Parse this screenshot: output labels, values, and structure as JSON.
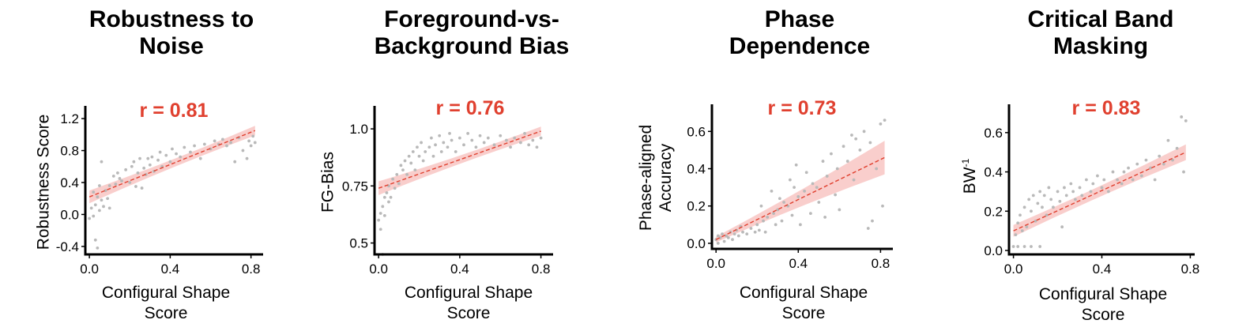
{
  "chart_data": [
    {
      "type": "scatter",
      "title": "Robustness to Noise",
      "title_lines": [
        "Robustness to",
        "Noise"
      ],
      "r_label": "r = 0.81",
      "xlabel_lines": [
        "Configural Shape",
        "Score"
      ],
      "ylabel": "Robustness Score",
      "xlim": [
        -0.02,
        0.86
      ],
      "ylim": [
        -0.5,
        1.3
      ],
      "xticks": [
        0.0,
        0.4,
        0.8
      ],
      "xtick_labels": [
        "0.0",
        "0.4",
        "0.8"
      ],
      "yticks": [
        -0.4,
        0.0,
        0.4,
        0.8,
        1.2
      ],
      "ytick_labels": [
        "-0.4",
        "0.0",
        "0.4",
        "0.8",
        "1.2"
      ],
      "fit": {
        "x": [
          0.0,
          0.82
        ],
        "y": [
          0.22,
          1.05
        ],
        "band": [
          0.08,
          0.06
        ]
      },
      "points": [
        [
          0.0,
          -0.05
        ],
        [
          0.01,
          0.08
        ],
        [
          0.02,
          0.28
        ],
        [
          0.02,
          -0.02
        ],
        [
          0.03,
          0.12
        ],
        [
          0.03,
          -0.32
        ],
        [
          0.04,
          -0.42
        ],
        [
          0.04,
          0.22
        ],
        [
          0.05,
          0.05
        ],
        [
          0.05,
          0.36
        ],
        [
          0.06,
          0.18
        ],
        [
          0.06,
          0.66
        ],
        [
          0.07,
          0.1
        ],
        [
          0.08,
          0.3
        ],
        [
          0.09,
          0.2
        ],
        [
          0.1,
          0.08
        ],
        [
          0.1,
          0.36
        ],
        [
          0.12,
          0.48
        ],
        [
          0.13,
          0.38
        ],
        [
          0.14,
          0.52
        ],
        [
          0.15,
          0.45
        ],
        [
          0.16,
          0.42
        ],
        [
          0.18,
          0.56
        ],
        [
          0.2,
          0.4
        ],
        [
          0.21,
          0.6
        ],
        [
          0.22,
          0.66
        ],
        [
          0.23,
          0.35
        ],
        [
          0.24,
          0.52
        ],
        [
          0.25,
          0.7
        ],
        [
          0.26,
          0.33
        ],
        [
          0.27,
          0.58
        ],
        [
          0.28,
          0.5
        ],
        [
          0.29,
          0.7
        ],
        [
          0.3,
          0.62
        ],
        [
          0.31,
          0.72
        ],
        [
          0.32,
          0.54
        ],
        [
          0.34,
          0.68
        ],
        [
          0.35,
          0.78
        ],
        [
          0.36,
          0.6
        ],
        [
          0.38,
          0.74
        ],
        [
          0.4,
          0.66
        ],
        [
          0.41,
          0.82
        ],
        [
          0.43,
          0.76
        ],
        [
          0.45,
          0.72
        ],
        [
          0.47,
          0.84
        ],
        [
          0.5,
          0.78
        ],
        [
          0.52,
          0.86
        ],
        [
          0.55,
          0.7
        ],
        [
          0.57,
          0.88
        ],
        [
          0.6,
          0.82
        ],
        [
          0.62,
          0.92
        ],
        [
          0.64,
          0.88
        ],
        [
          0.66,
          0.94
        ],
        [
          0.68,
          0.86
        ],
        [
          0.7,
          0.9
        ],
        [
          0.72,
          0.66
        ],
        [
          0.74,
          0.96
        ],
        [
          0.76,
          0.8
        ],
        [
          0.78,
          0.7
        ],
        [
          0.79,
          0.92
        ],
        [
          0.8,
          0.86
        ],
        [
          0.81,
          0.98
        ],
        [
          0.82,
          0.9
        ]
      ]
    },
    {
      "type": "scatter",
      "title": "Foreground-vs-Background Bias",
      "title_lines": [
        "Foreground-vs-",
        "Background Bias"
      ],
      "r_label": "r = 0.76",
      "xlabel_lines": [
        "Configural Shape",
        "Score"
      ],
      "ylabel": "FG-Bias",
      "xlim": [
        -0.02,
        0.86
      ],
      "ylim": [
        0.45,
        1.08
      ],
      "xticks": [
        0.0,
        0.4,
        0.8
      ],
      "xtick_labels": [
        "0.0",
        "0.4",
        "0.8"
      ],
      "yticks": [
        0.5,
        0.75,
        1.0
      ],
      "ytick_labels": [
        "0.5",
        "0.75",
        "1.0"
      ],
      "fit": {
        "x": [
          0.0,
          0.8
        ],
        "y": [
          0.74,
          0.99
        ],
        "band": [
          0.03,
          0.02
        ]
      },
      "points": [
        [
          0.0,
          0.6
        ],
        [
          0.01,
          0.63
        ],
        [
          0.01,
          0.56
        ],
        [
          0.02,
          0.45
        ],
        [
          0.02,
          0.66
        ],
        [
          0.03,
          0.7
        ],
        [
          0.03,
          0.62
        ],
        [
          0.04,
          0.72
        ],
        [
          0.05,
          0.68
        ],
        [
          0.05,
          0.75
        ],
        [
          0.06,
          0.7
        ],
        [
          0.07,
          0.78
        ],
        [
          0.08,
          0.74
        ],
        [
          0.09,
          0.8
        ],
        [
          0.1,
          0.76
        ],
        [
          0.11,
          0.84
        ],
        [
          0.12,
          0.82
        ],
        [
          0.13,
          0.86
        ],
        [
          0.14,
          0.8
        ],
        [
          0.15,
          0.88
        ],
        [
          0.16,
          0.85
        ],
        [
          0.17,
          0.9
        ],
        [
          0.18,
          0.82
        ],
        [
          0.19,
          0.92
        ],
        [
          0.2,
          0.88
        ],
        [
          0.21,
          0.94
        ],
        [
          0.22,
          0.86
        ],
        [
          0.23,
          0.9
        ],
        [
          0.25,
          0.92
        ],
        [
          0.26,
          0.96
        ],
        [
          0.27,
          0.88
        ],
        [
          0.28,
          0.93
        ],
        [
          0.3,
          0.97
        ],
        [
          0.31,
          0.9
        ],
        [
          0.32,
          0.94
        ],
        [
          0.34,
          0.92
        ],
        [
          0.35,
          0.98
        ],
        [
          0.36,
          0.95
        ],
        [
          0.38,
          0.9
        ],
        [
          0.4,
          0.96
        ],
        [
          0.42,
          0.93
        ],
        [
          0.44,
          0.98
        ],
        [
          0.46,
          0.95
        ],
        [
          0.48,
          0.92
        ],
        [
          0.5,
          0.97
        ],
        [
          0.52,
          0.94
        ],
        [
          0.54,
          0.96
        ],
        [
          0.57,
          0.93
        ],
        [
          0.6,
          0.97
        ],
        [
          0.63,
          0.95
        ],
        [
          0.65,
          0.92
        ],
        [
          0.67,
          0.96
        ],
        [
          0.7,
          0.94
        ],
        [
          0.72,
          0.98
        ],
        [
          0.74,
          0.93
        ],
        [
          0.76,
          0.95
        ],
        [
          0.78,
          0.92
        ],
        [
          0.8,
          0.96
        ]
      ]
    },
    {
      "type": "scatter",
      "title": "Phase Dependence",
      "title_lines": [
        "Phase",
        "Dependence"
      ],
      "r_label": "r = 0.73",
      "xlabel_lines": [
        "Configural Shape",
        "Score"
      ],
      "ylabel_lines": [
        "Phase-aligned",
        "Accuracy"
      ],
      "ylabel": "Phase-aligned Accuracy",
      "xlim": [
        -0.02,
        0.86
      ],
      "ylim": [
        -0.03,
        0.72
      ],
      "xticks": [
        0.0,
        0.4,
        0.8
      ],
      "xtick_labels": [
        "0.0",
        "0.4",
        "0.8"
      ],
      "yticks": [
        0.0,
        0.2,
        0.4,
        0.6
      ],
      "ytick_labels": [
        "0.0",
        "0.2",
        "0.4",
        "0.6"
      ],
      "fit": {
        "x": [
          0.0,
          0.82
        ],
        "y": [
          0.02,
          0.46
        ],
        "band": [
          0.015,
          0.09
        ]
      },
      "points": [
        [
          0.0,
          0.02
        ],
        [
          0.01,
          0.04
        ],
        [
          0.01,
          0.0
        ],
        [
          0.02,
          0.03
        ],
        [
          0.03,
          0.05
        ],
        [
          0.04,
          0.01
        ],
        [
          0.05,
          0.04
        ],
        [
          0.06,
          0.03
        ],
        [
          0.07,
          0.06
        ],
        [
          0.08,
          0.02
        ],
        [
          0.09,
          0.05
        ],
        [
          0.1,
          0.07
        ],
        [
          0.11,
          0.04
        ],
        [
          0.12,
          0.09
        ],
        [
          0.13,
          0.06
        ],
        [
          0.15,
          0.05
        ],
        [
          0.17,
          0.08
        ],
        [
          0.19,
          0.06
        ],
        [
          0.2,
          0.1
        ],
        [
          0.21,
          0.07
        ],
        [
          0.22,
          0.2
        ],
        [
          0.23,
          0.12
        ],
        [
          0.24,
          0.06
        ],
        [
          0.25,
          0.14
        ],
        [
          0.27,
          0.28
        ],
        [
          0.28,
          0.16
        ],
        [
          0.29,
          0.1
        ],
        [
          0.3,
          0.18
        ],
        [
          0.31,
          0.24
        ],
        [
          0.32,
          0.12
        ],
        [
          0.33,
          0.22
        ],
        [
          0.35,
          0.2
        ],
        [
          0.36,
          0.34
        ],
        [
          0.37,
          0.15
        ],
        [
          0.38,
          0.3
        ],
        [
          0.39,
          0.42
        ],
        [
          0.4,
          0.25
        ],
        [
          0.41,
          0.1
        ],
        [
          0.43,
          0.28
        ],
        [
          0.44,
          0.38
        ],
        [
          0.46,
          0.16
        ],
        [
          0.47,
          0.32
        ],
        [
          0.49,
          0.3
        ],
        [
          0.5,
          0.22
        ],
        [
          0.52,
          0.44
        ],
        [
          0.53,
          0.14
        ],
        [
          0.54,
          0.36
        ],
        [
          0.56,
          0.48
        ],
        [
          0.58,
          0.26
        ],
        [
          0.59,
          0.4
        ],
        [
          0.6,
          0.18
        ],
        [
          0.62,
          0.52
        ],
        [
          0.64,
          0.44
        ],
        [
          0.66,
          0.58
        ],
        [
          0.67,
          0.34
        ],
        [
          0.68,
          0.56
        ],
        [
          0.7,
          0.5
        ],
        [
          0.72,
          0.6
        ],
        [
          0.74,
          0.08
        ],
        [
          0.75,
          0.54
        ],
        [
          0.76,
          0.12
        ],
        [
          0.78,
          0.4
        ],
        [
          0.8,
          0.64
        ],
        [
          0.81,
          0.2
        ],
        [
          0.82,
          0.66
        ]
      ]
    },
    {
      "type": "scatter",
      "title": "Critical Band Masking",
      "title_lines": [
        "Critical Band",
        "Masking"
      ],
      "r_label": "r = 0.83",
      "xlabel_lines": [
        "Configural Shape",
        "Score"
      ],
      "ylabel": "BW-1",
      "ylabel_base": "BW",
      "ylabel_sup": "-1",
      "xlim": [
        -0.02,
        0.82
      ],
      "ylim": [
        -0.02,
        0.72
      ],
      "xticks": [
        0.0,
        0.4,
        0.8
      ],
      "xtick_labels": [
        "0.0",
        "0.4",
        "0.8"
      ],
      "yticks": [
        0.0,
        0.2,
        0.4,
        0.6
      ],
      "ytick_labels": [
        "0.0",
        "0.2",
        "0.4",
        "0.6"
      ],
      "fit": {
        "x": [
          0.0,
          0.78
        ],
        "y": [
          0.1,
          0.5
        ],
        "band": [
          0.03,
          0.04
        ]
      },
      "points": [
        [
          0.0,
          0.02
        ],
        [
          0.01,
          0.08
        ],
        [
          0.02,
          0.14
        ],
        [
          0.02,
          0.02
        ],
        [
          0.03,
          0.18
        ],
        [
          0.04,
          0.1
        ],
        [
          0.05,
          0.02
        ],
        [
          0.05,
          0.22
        ],
        [
          0.06,
          0.12
        ],
        [
          0.07,
          0.26
        ],
        [
          0.08,
          0.02
        ],
        [
          0.08,
          0.2
        ],
        [
          0.09,
          0.28
        ],
        [
          0.1,
          0.15
        ],
        [
          0.11,
          0.24
        ],
        [
          0.12,
          0.02
        ],
        [
          0.12,
          0.3
        ],
        [
          0.13,
          0.22
        ],
        [
          0.14,
          0.28
        ],
        [
          0.15,
          0.18
        ],
        [
          0.16,
          0.32
        ],
        [
          0.17,
          0.26
        ],
        [
          0.18,
          0.22
        ],
        [
          0.2,
          0.3
        ],
        [
          0.21,
          0.25
        ],
        [
          0.22,
          0.12
        ],
        [
          0.23,
          0.32
        ],
        [
          0.24,
          0.28
        ],
        [
          0.26,
          0.34
        ],
        [
          0.27,
          0.3
        ],
        [
          0.28,
          0.26
        ],
        [
          0.3,
          0.32
        ],
        [
          0.31,
          0.28
        ],
        [
          0.33,
          0.36
        ],
        [
          0.35,
          0.3
        ],
        [
          0.36,
          0.34
        ],
        [
          0.38,
          0.38
        ],
        [
          0.4,
          0.32
        ],
        [
          0.41,
          0.36
        ],
        [
          0.43,
          0.3
        ],
        [
          0.45,
          0.4
        ],
        [
          0.47,
          0.36
        ],
        [
          0.49,
          0.34
        ],
        [
          0.5,
          0.4
        ],
        [
          0.52,
          0.42
        ],
        [
          0.54,
          0.36
        ],
        [
          0.56,
          0.44
        ],
        [
          0.58,
          0.38
        ],
        [
          0.6,
          0.46
        ],
        [
          0.62,
          0.42
        ],
        [
          0.64,
          0.36
        ],
        [
          0.66,
          0.48
        ],
        [
          0.68,
          0.44
        ],
        [
          0.7,
          0.56
        ],
        [
          0.72,
          0.46
        ],
        [
          0.74,
          0.52
        ],
        [
          0.76,
          0.68
        ],
        [
          0.77,
          0.4
        ],
        [
          0.78,
          0.66
        ]
      ]
    }
  ]
}
